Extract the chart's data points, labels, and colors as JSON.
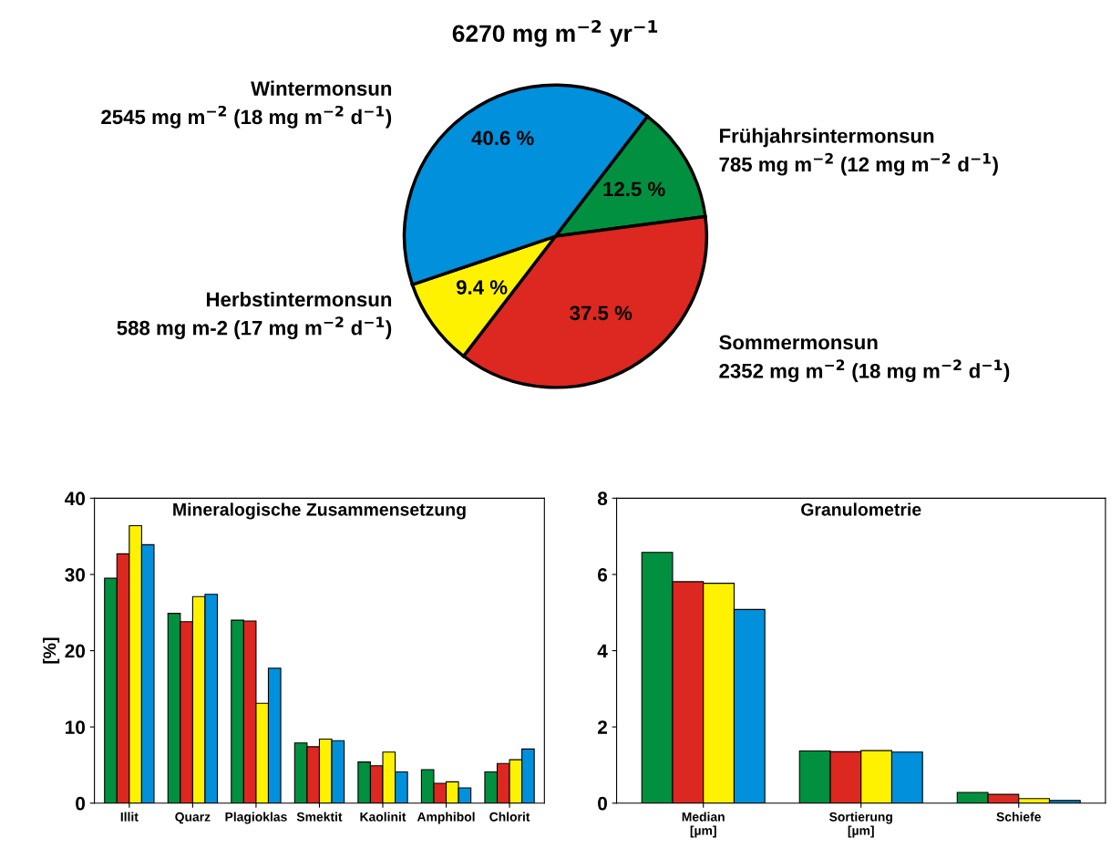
{
  "chart_data": [
    {
      "type": "pie",
      "title": "6270 mg m$^{−2}$ yr$^{−1}$",
      "categories": [
        "Frühjahrsintermonsun",
        "Sommermonsun",
        "Herbstintermonsun",
        "Wintermonsun"
      ],
      "values": [
        12.5,
        37.5,
        9.4,
        40.6
      ],
      "colors": [
        "#009040",
        "#dc2820",
        "#fff200",
        "#0090dc"
      ],
      "value_labels": [
        "12.5 %",
        "37.5 %",
        "9.4 %",
        "40.6 %"
      ],
      "annotations": [
        "785 mg m$^{−2}$ (12 mg m$^{−2}$ d$^{−1}$)",
        "2352 mg m$^{−2}$ (18 mg m$^{−2}$ d$^{−1}$)",
        "588 mg m-2 (17 mg m$^{−2}$ d$^{−1}$)",
        "2545 mg m$^{−2}$ (18 mg m$^{−2}$ d$^{−1}$)"
      ]
    },
    {
      "type": "bar",
      "title": "Mineralogische Zusammensetzung",
      "ylabel": "[%]",
      "categories": [
        "Illit",
        "Quarz",
        "Plagioklas",
        "Smektit",
        "Kaolinit",
        "Amphibol",
        "Chlorit"
      ],
      "series": [
        {
          "color": "#009040",
          "values": [
            29.5,
            24.9,
            24.0,
            7.9,
            5.4,
            4.4,
            4.1
          ]
        },
        {
          "color": "#dc2820",
          "values": [
            32.7,
            23.8,
            23.9,
            7.4,
            4.9,
            2.6,
            5.2
          ]
        },
        {
          "color": "#fff200",
          "values": [
            36.4,
            27.1,
            13.1,
            8.4,
            6.7,
            2.8,
            5.7
          ]
        },
        {
          "color": "#0090dc",
          "values": [
            33.9,
            27.4,
            17.7,
            8.2,
            4.1,
            2.0,
            7.1
          ]
        }
      ],
      "ylim": [
        0,
        40
      ],
      "yticks": [
        0,
        10,
        20,
        30,
        40
      ]
    },
    {
      "type": "bar",
      "title": "Granulometrie",
      "categories": [
        "Median\n[µm]",
        "Sortierung\n[µm]",
        "Schiefe"
      ],
      "series": [
        {
          "color": "#009040",
          "values": [
            6.58,
            1.37,
            0.28
          ]
        },
        {
          "color": "#dc2820",
          "values": [
            5.81,
            1.35,
            0.23
          ]
        },
        {
          "color": "#fff200",
          "values": [
            5.77,
            1.38,
            0.12
          ]
        },
        {
          "color": "#0090dc",
          "values": [
            5.08,
            1.34,
            0.07
          ]
        }
      ],
      "ylim": [
        0,
        8
      ],
      "yticks": [
        0,
        2,
        4,
        6,
        8
      ]
    }
  ]
}
